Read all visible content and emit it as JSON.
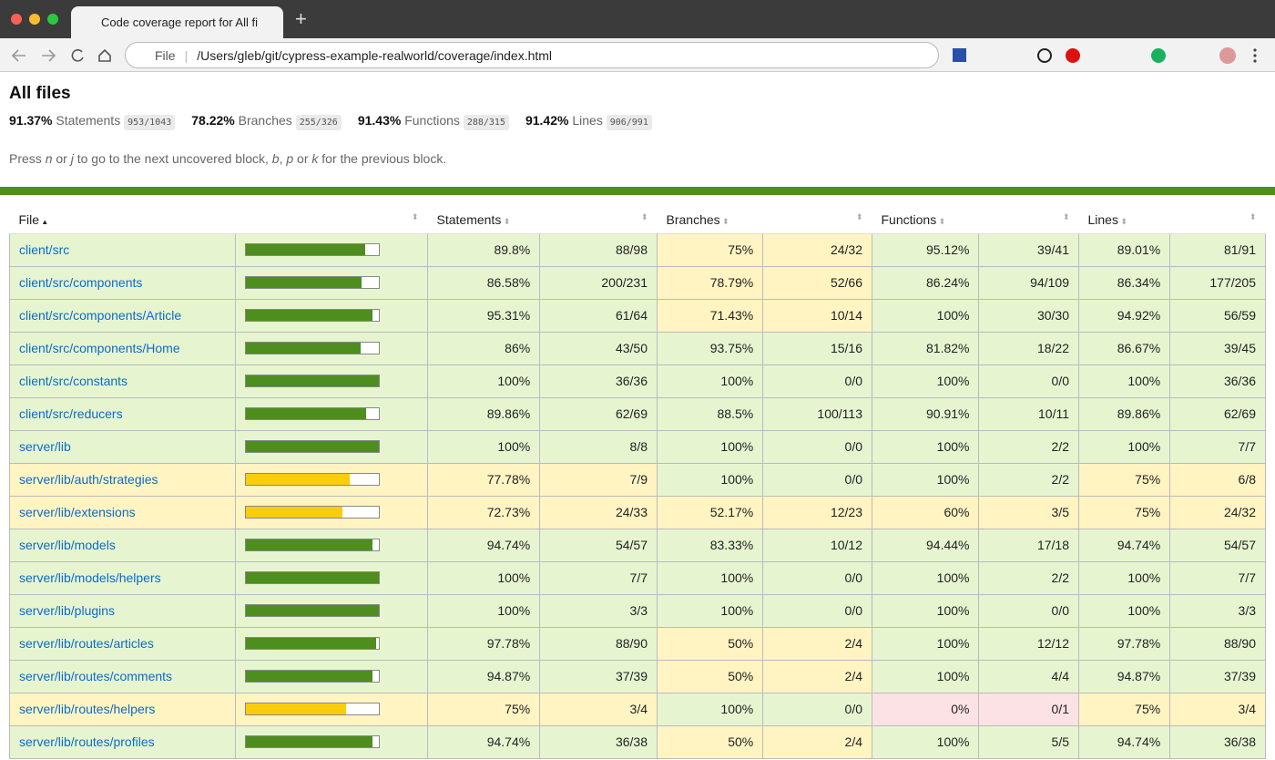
{
  "browser": {
    "tab_title": "Code coverage report for All fi",
    "scheme": "File",
    "url": "/Users/gleb/git/cypress-example-realworld/coverage/index.html"
  },
  "header": {
    "title": "All files",
    "summary": [
      {
        "pct": "91.37%",
        "label": "Statements",
        "fraction": "953/1043"
      },
      {
        "pct": "78.22%",
        "label": "Branches",
        "fraction": "255/326"
      },
      {
        "pct": "91.43%",
        "label": "Functions",
        "fraction": "288/315"
      },
      {
        "pct": "91.42%",
        "label": "Lines",
        "fraction": "906/991"
      }
    ],
    "help": [
      "Press ",
      "n",
      " or ",
      "j",
      " to go to the next uncovered block, ",
      "b",
      ", ",
      "p",
      " or ",
      "k",
      " for the previous block."
    ]
  },
  "table": {
    "columns": [
      "File",
      "Statements",
      "Branches",
      "Functions",
      "Lines"
    ],
    "rows": [
      [
        "client/src",
        "89.8%",
        "88/98",
        "75%",
        "24/32",
        "95.12%",
        "39/41",
        "89.01%",
        "81/91"
      ],
      [
        "client/src/components",
        "86.58%",
        "200/231",
        "78.79%",
        "52/66",
        "86.24%",
        "94/109",
        "86.34%",
        "177/205"
      ],
      [
        "client/src/components/Article",
        "95.31%",
        "61/64",
        "71.43%",
        "10/14",
        "100%",
        "30/30",
        "94.92%",
        "56/59"
      ],
      [
        "client/src/components/Home",
        "86%",
        "43/50",
        "93.75%",
        "15/16",
        "81.82%",
        "18/22",
        "86.67%",
        "39/45"
      ],
      [
        "client/src/constants",
        "100%",
        "36/36",
        "100%",
        "0/0",
        "100%",
        "0/0",
        "100%",
        "36/36"
      ],
      [
        "client/src/reducers",
        "89.86%",
        "62/69",
        "88.5%",
        "100/113",
        "90.91%",
        "10/11",
        "89.86%",
        "62/69"
      ],
      [
        "server/lib",
        "100%",
        "8/8",
        "100%",
        "0/0",
        "100%",
        "2/2",
        "100%",
        "7/7"
      ],
      [
        "server/lib/auth/strategies",
        "77.78%",
        "7/9",
        "100%",
        "0/0",
        "100%",
        "2/2",
        "75%",
        "6/8"
      ],
      [
        "server/lib/extensions",
        "72.73%",
        "24/33",
        "52.17%",
        "12/23",
        "60%",
        "3/5",
        "75%",
        "24/32"
      ],
      [
        "server/lib/models",
        "94.74%",
        "54/57",
        "83.33%",
        "10/12",
        "94.44%",
        "17/18",
        "94.74%",
        "54/57"
      ],
      [
        "server/lib/models/helpers",
        "100%",
        "7/7",
        "100%",
        "0/0",
        "100%",
        "2/2",
        "100%",
        "7/7"
      ],
      [
        "server/lib/plugins",
        "100%",
        "3/3",
        "100%",
        "0/0",
        "100%",
        "0/0",
        "100%",
        "3/3"
      ],
      [
        "server/lib/routes/articles",
        "97.78%",
        "88/90",
        "50%",
        "2/4",
        "100%",
        "12/12",
        "97.78%",
        "88/90"
      ],
      [
        "server/lib/routes/comments",
        "94.87%",
        "37/39",
        "50%",
        "2/4",
        "100%",
        "4/4",
        "94.87%",
        "37/39"
      ],
      [
        "server/lib/routes/helpers",
        "75%",
        "3/4",
        "100%",
        "0/0",
        "0%",
        "0/1",
        "75%",
        "3/4"
      ],
      [
        "server/lib/routes/profiles",
        "94.74%",
        "36/38",
        "50%",
        "2/4",
        "100%",
        "5/5",
        "94.74%",
        "36/38"
      ]
    ]
  }
}
